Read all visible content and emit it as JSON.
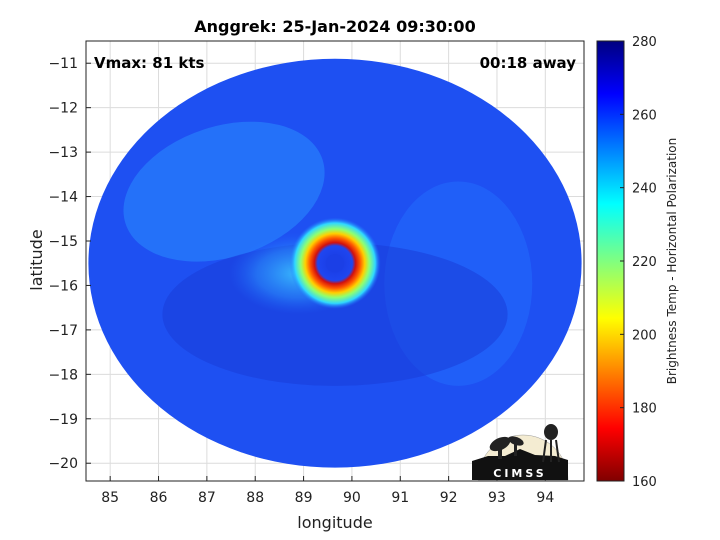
{
  "chart_data": {
    "type": "heatmap",
    "title": "Anggrek: 25-Jan-2024 09:30:00",
    "annotations": {
      "vmax": "Vmax: 81 kts",
      "away": "00:18 away"
    },
    "xlabel": "longitude",
    "ylabel": "latitude",
    "xlim": [
      84.5,
      94.8
    ],
    "ylim": [
      -20.4,
      -10.5
    ],
    "x_ticks": [
      85,
      86,
      87,
      88,
      89,
      90,
      91,
      92,
      93,
      94
    ],
    "y_ticks": [
      -11,
      -12,
      -13,
      -14,
      -15,
      -16,
      -17,
      -18,
      -19,
      -20
    ],
    "grid": true,
    "swath": {
      "center": [
        89.65,
        -15.5
      ],
      "radius_lon": 5.1,
      "radius_lat": 4.6
    },
    "eye": {
      "center": [
        89.65,
        -15.5
      ],
      "eye_radius_deg": 0.2,
      "eyewall_radius_deg": 0.45
    },
    "colorbar": {
      "label": "Brightness Temp - Horizontal Polarization",
      "range": [
        160,
        280
      ],
      "ticks": [
        280,
        260,
        240,
        220,
        200,
        180,
        160
      ],
      "colormap": "jet"
    },
    "logo_text": "CIMSS"
  }
}
